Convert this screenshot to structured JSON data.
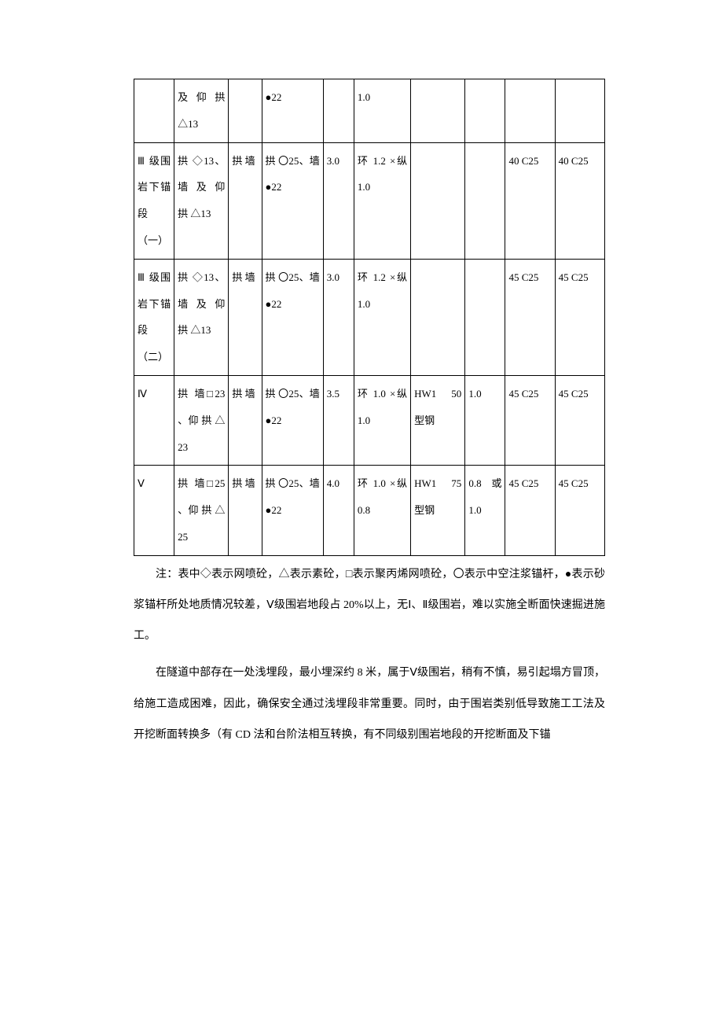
{
  "table": {
    "cols": [
      "col0",
      "col1",
      "col2",
      "col3",
      "col4",
      "col5",
      "col6",
      "col7",
      "col8",
      "col9"
    ],
    "rows": [
      [
        "",
        "及 仰 拱 △13",
        "",
        "●22",
        "",
        "1.0",
        "",
        "",
        "",
        ""
      ],
      [
        "Ⅲ 级围岩下锚段（一）",
        "拱 ◇13、墙 及 仰 拱 △13",
        "拱 墙",
        "拱 〇25、墙 ●22",
        "3.0",
        "环 1.2 ×纵 1.0",
        "",
        "",
        "40 C25",
        "40 C25"
      ],
      [
        "Ⅲ 级围岩下锚段（二）",
        "拱 ◇13、墙 及 仰 拱 △13",
        "拱 墙",
        "拱 〇25、墙 ●22",
        "3.0",
        "环 1.2 ×纵 1.0",
        "",
        "",
        "45 C25",
        "45 C25"
      ],
      [
        "Ⅳ",
        "拱 墙□23 、仰 拱 △ 23",
        "拱 墙",
        "拱 〇25、墙 ●22",
        "3.5",
        "环 1.0 ×纵 1.0",
        "HW1 50 型钢",
        "1.0",
        "45 C25",
        "45 C25"
      ],
      [
        "Ⅴ",
        "拱 墙□25 、仰 拱 △ 25",
        "拱 墙",
        "拱 〇25、墙 ●22",
        "4.0",
        "环 1.0 ×纵 0.8",
        "HW1 75 型钢",
        "0.8 或 1.0",
        "45 C25",
        "45 C25"
      ]
    ]
  },
  "note_text": "注：表中◇表示网喷砼，△表示素砼，□表示聚丙烯网喷砼，〇表示中空注浆锚杆，●表示砂浆锚杆所处地质情况较差，Ⅴ级围岩地段占 20%以上，无Ⅰ、Ⅱ级围岩，难以实施全断面快速掘进施工。",
  "body_text": "在隧道中部存在一处浅埋段，最小埋深约 8 米，属于Ⅴ级围岩，稍有不慎，易引起塌方冒顶，给施工造成困难，因此，确保安全通过浅埋段非常重要。同时，由于围岩类别低导致施工工法及开挖断面转换多（有 CD 法和台阶法相互转换，有不同级别围岩地段的开挖断面及下锚"
}
